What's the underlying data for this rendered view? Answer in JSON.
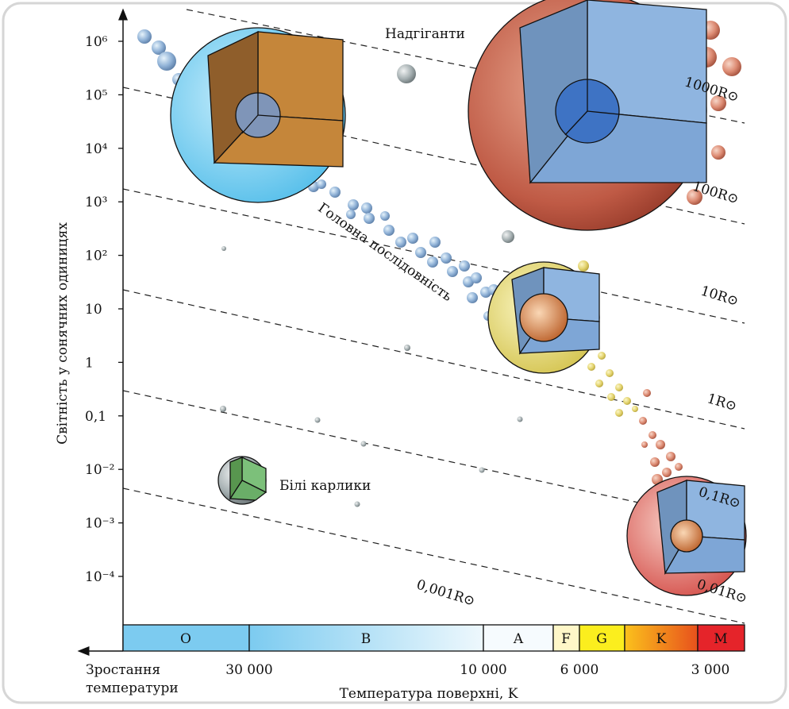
{
  "y_axis": {
    "label": "Світність у сонячних одиницях",
    "ticks": [
      "10⁶",
      "10⁵",
      "10⁴",
      "10³",
      "10²",
      "10",
      "1",
      "0,1",
      "10⁻²",
      "10⁻³",
      "10⁻⁴"
    ]
  },
  "x_axis": {
    "label": "Температура поверхні, K",
    "direction_label": [
      "Зростання",
      "температури"
    ],
    "ticks": [
      "30 000",
      "10 000",
      "6 000",
      "3 000"
    ]
  },
  "spectral_classes": [
    "O",
    "B",
    "A",
    "F",
    "G",
    "K",
    "M"
  ],
  "regions": [
    "Надгіганти",
    "Головна послідовність",
    "Білі карлики"
  ],
  "radius_lines": [
    "1000R⊙",
    "100R⊙",
    "10R⊙",
    "1R⊙",
    "0,1R⊙",
    "0,01R⊙",
    "0,001R⊙"
  ]
}
